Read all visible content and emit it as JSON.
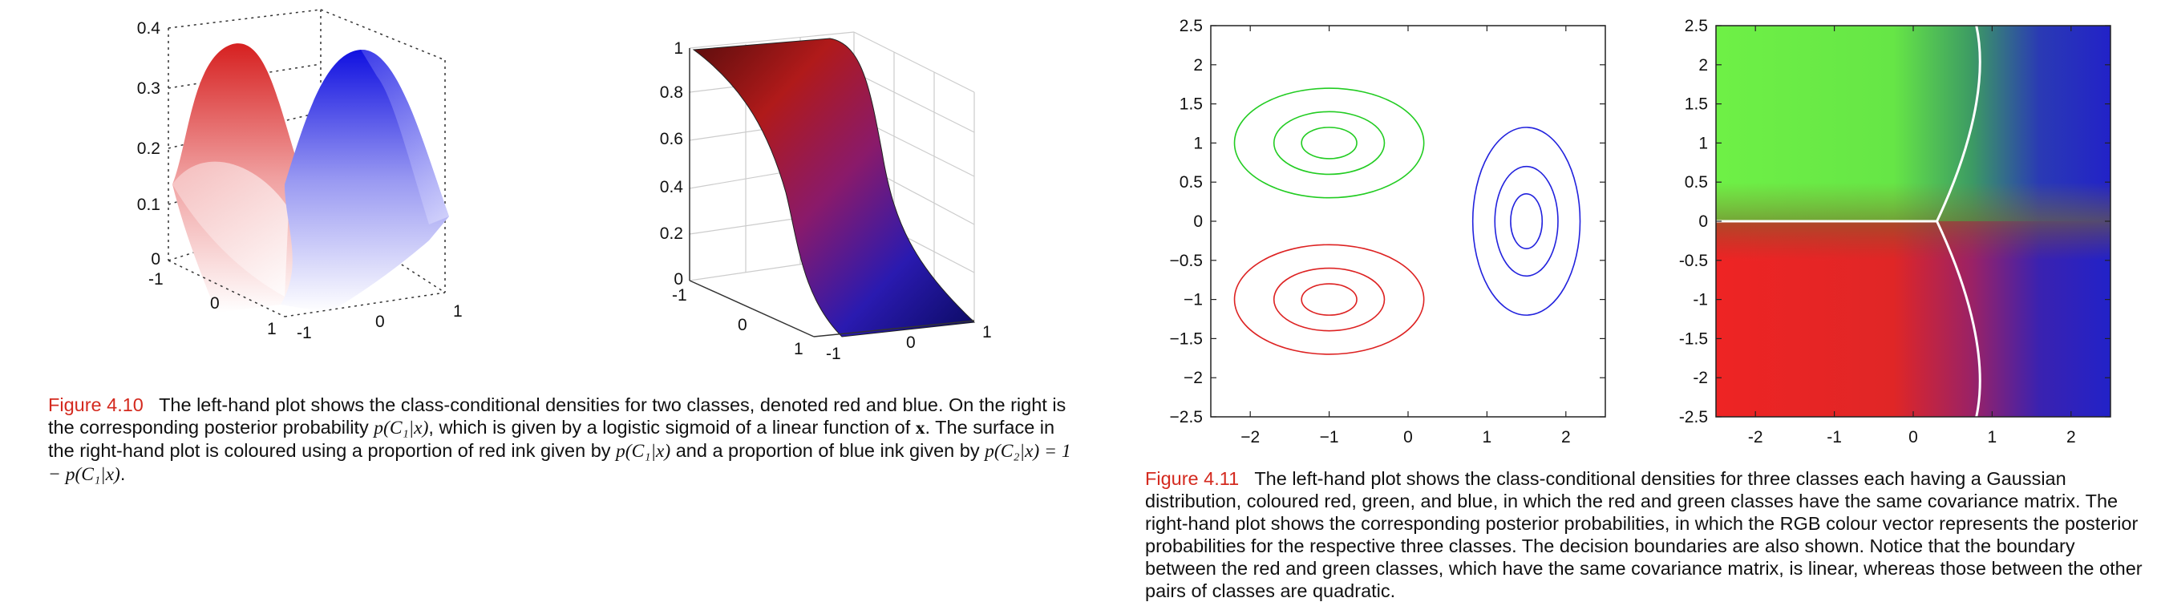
{
  "figures": [
    {
      "label": "Figure 4.10",
      "caption": {
        "p1": "The left-hand plot shows the class-conditional densities for two classes, denoted red and blue. On the right is the corresponding posterior probability ",
        "m1": "p(C₁|x)",
        "p2": ", which is given by a logistic sigmoid of a linear function of ",
        "m2": "x",
        "p3": ". The surface in the right-hand plot is coloured using a proportion of red ink given by ",
        "m3": "p(C₁|x)",
        "p4": " and a proportion of blue ink given by ",
        "m4": "p(C₂|x) = 1 − p(C₁|x)",
        "p5": "."
      }
    },
    {
      "label": "Figure 4.11",
      "caption": "The left-hand plot shows the class-conditional densities for three classes each having a Gaussian distribution, coloured red, green, and blue, in which the red and green classes have the same covariance matrix. The right-hand plot shows the corresponding posterior probabilities, in which the RGB colour vector represents the posterior probabilities for the respective three classes. The decision boundaries are also shown. Notice that the boundary between the red and green classes, which have the same covariance matrix, is linear, whereas those between the other pairs of classes are quadratic."
    }
  ],
  "chart_data": [
    {
      "type": "surface",
      "series": [
        {
          "name": "red"
        },
        {
          "name": "blue"
        }
      ],
      "z_ticks": [
        "0",
        "0.1",
        "0.2",
        "0.3",
        "0.4"
      ],
      "x_ticks": [
        "-1",
        "0",
        "1"
      ],
      "y_ticks": [
        "-1",
        "0",
        "1"
      ],
      "zlim": [
        0,
        0.4
      ]
    },
    {
      "type": "surface",
      "z_ticks": [
        "0",
        "0.2",
        "0.4",
        "0.6",
        "0.8",
        "1"
      ],
      "x_ticks": [
        "-1",
        "0",
        "1"
      ],
      "y_ticks": [
        "-1",
        "0",
        "1"
      ],
      "zlim": [
        0,
        1
      ]
    },
    {
      "type": "contour",
      "xlim": [
        -2.5,
        2.5
      ],
      "ylim": [
        -2.5,
        2.5
      ],
      "x_ticks": [
        "−2",
        "−1",
        "0",
        "1",
        "2"
      ],
      "y_ticks": [
        "2.5",
        "2",
        "1.5",
        "1",
        "0.5",
        "0",
        "−0.5",
        "−1",
        "−1.5",
        "−2",
        "−2.5"
      ],
      "series": [
        {
          "name": "green",
          "color": "#22cc22",
          "center": [
            -1,
            1
          ],
          "radii": [
            [
              0.35,
              0.2
            ],
            [
              0.7,
              0.4
            ],
            [
              1.2,
              0.7
            ]
          ]
        },
        {
          "name": "red",
          "color": "#dd2222",
          "center": [
            -1,
            -1
          ],
          "radii": [
            [
              0.35,
              0.2
            ],
            [
              0.7,
              0.4
            ],
            [
              1.2,
              0.7
            ]
          ]
        },
        {
          "name": "blue",
          "color": "#2222dd",
          "center": [
            1.5,
            0
          ],
          "radii": [
            [
              0.2,
              0.35
            ],
            [
              0.4,
              0.7
            ],
            [
              0.68,
              1.2
            ]
          ]
        }
      ]
    },
    {
      "type": "heatmap",
      "xlim": [
        -2.5,
        2.5
      ],
      "ylim": [
        -2.5,
        2.5
      ],
      "x_ticks": [
        "-2",
        "-1",
        "0",
        "1",
        "2"
      ],
      "y_ticks": [
        "2.5",
        "2",
        "1.5",
        "1",
        "0.5",
        "0",
        "-0.5",
        "-1",
        "-1.5",
        "-2",
        "-2.5"
      ],
      "boundaries": [
        {
          "name": "red-green",
          "points": [
            [
              -2.5,
              0
            ],
            [
              0.3,
              0
            ]
          ]
        },
        {
          "name": "green-blue",
          "points": [
            [
              0.3,
              0
            ],
            [
              0.72,
              0.9
            ],
            [
              0.95,
              1.8
            ],
            [
              0.8,
              2.5
            ]
          ]
        },
        {
          "name": "red-blue",
          "points": [
            [
              0.3,
              0
            ],
            [
              0.72,
              -0.9
            ],
            [
              0.95,
              -1.8
            ],
            [
              0.8,
              -2.5
            ]
          ]
        }
      ],
      "colors": {
        "red": "#ee2222",
        "green": "#66ee44",
        "blue": "#2222cc"
      }
    }
  ]
}
